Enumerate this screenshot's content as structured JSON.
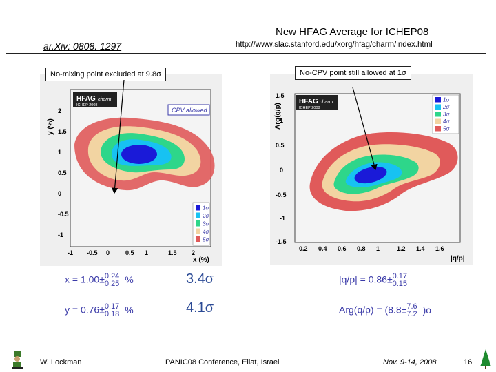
{
  "header": {
    "title": "New HFAG Average for ICHEP08",
    "url": "http://www.slac.stanford.edu/xorg/hfag/charm/index.html",
    "arxiv": "ar.Xiv: 0808. 1297"
  },
  "callouts": {
    "left": "No-mixing point excluded at 9.8σ",
    "right": "No-CPV point still allowed at 1σ"
  },
  "chart_data": [
    {
      "type": "contour",
      "title": "",
      "xlabel": "x (%)",
      "ylabel": "y (%)",
      "xlim": [
        -1.1,
        2.1
      ],
      "ylim": [
        -1.1,
        2.4
      ],
      "xticks": [
        "-1",
        "-0.5",
        "0",
        "0.5",
        "1",
        "1.5",
        "2"
      ],
      "yticks": [
        "2",
        "1.5",
        "1",
        "0.5",
        "0",
        "-0.5",
        "-1"
      ],
      "best_fit": {
        "x": 1.0,
        "y": 0.76
      },
      "contours": [
        "1σ",
        "2σ",
        "3σ",
        "4σ",
        "5σ"
      ],
      "badge": "HFAG",
      "badge_sub": "charm",
      "badge_line2": "ICHEP 2008",
      "annotation": "CPV allowed"
    },
    {
      "type": "contour",
      "title": "",
      "xlabel": "|q/p|",
      "ylabel": "Arg(q/p)",
      "xlim": [
        0.15,
        1.82
      ],
      "ylim": [
        -1.5,
        1.5
      ],
      "xticks": [
        "0.2",
        "0.4",
        "0.6",
        "0.8",
        "1",
        "1.2",
        "1.4",
        "1.6"
      ],
      "yticks": [
        "1.5",
        "1",
        "0.5",
        "0",
        "-0.5",
        "-1",
        "-1.5"
      ],
      "best_fit": {
        "x": 0.86,
        "y": 0.15
      },
      "contours": [
        "1σ",
        "2σ",
        "3σ",
        "4σ",
        "5σ"
      ],
      "badge": "HFAG",
      "badge_sub": "charm",
      "badge_line2": "ICHEP 2008"
    }
  ],
  "legend_colors": [
    "#1a1ad8",
    "#17c2f2",
    "#2ed68a",
    "#f2d4a2",
    "#e05a5a"
  ],
  "results": {
    "x": {
      "label": "x = 1.00±",
      "up": "0.24",
      "down": "0.25",
      "unit": "%",
      "significance": "3.4σ"
    },
    "y": {
      "label": "y = 0.76±",
      "up": "0.17",
      "down": "0.18",
      "unit": "%",
      "significance": "4.1σ"
    },
    "qp": {
      "label": "|q/p| = 0.86±",
      "up": "0.17",
      "down": "0.15"
    },
    "arg": {
      "label": "Arg(q/p) = (8.8±",
      "up": "7.6",
      "down": "7.2",
      "unit": ")o"
    }
  },
  "footer": {
    "author": "W. Lockman",
    "conference": "PANIC08 Conference, Eilat, Israel",
    "date": "Nov. 9-14, 2008",
    "page": "16"
  }
}
